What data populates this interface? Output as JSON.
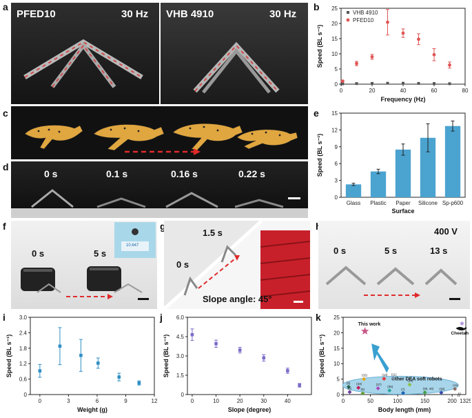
{
  "panels": {
    "a": "a",
    "b": "b",
    "c": "c",
    "d": "d",
    "e": "e",
    "f": "f",
    "g": "g",
    "h": "h",
    "i": "i",
    "j": "j",
    "k": "k"
  },
  "photo_a": {
    "left_label": "PFED10",
    "left_freq": "30 Hz",
    "right_label": "VHB 4910",
    "right_freq": "30 Hz"
  },
  "photo_d": {
    "times": [
      "0 s",
      "0.1 s",
      "0.16 s",
      "0.22 s"
    ]
  },
  "photo_f": {
    "t0": "0 s",
    "t1": "5 s",
    "scale_reading": "10.647"
  },
  "photo_g": {
    "t0": "0 s",
    "t1": "1.5 s",
    "slope": "Slope angle: 45°"
  },
  "photo_h": {
    "voltage": "400 V",
    "t0": "0 s",
    "t1": "5 s",
    "t2": "13 s"
  },
  "chart_data": [
    {
      "id": "b",
      "type": "scatter",
      "xlabel": "Frequency (Hz)",
      "ylabel": "Speed (BL s⁻¹)",
      "xlim": [
        0,
        80
      ],
      "ylim": [
        0,
        25
      ],
      "xticks": [
        0,
        20,
        40,
        60,
        80
      ],
      "yticks": [
        0,
        5,
        10,
        15,
        20,
        25
      ],
      "legend": "top-left",
      "series": [
        {
          "name": "VHB 4910",
          "color": "#555555",
          "marker": "square",
          "x": [
            1,
            10,
            20,
            30,
            40,
            50,
            60,
            70
          ],
          "y": [
            0.1,
            0.2,
            0.25,
            0.3,
            0.3,
            0.25,
            0.2,
            0.15
          ],
          "err": [
            0,
            0,
            0,
            0,
            0,
            0,
            0,
            0
          ]
        },
        {
          "name": "PFED10",
          "color": "#e05555",
          "marker": "circle",
          "x": [
            1,
            10,
            20,
            30,
            40,
            50,
            60,
            70
          ],
          "y": [
            1.0,
            6.8,
            9.0,
            20.4,
            16.8,
            14.8,
            9.7,
            6.3
          ],
          "err": [
            0.3,
            0.7,
            0.8,
            4.2,
            1.4,
            1.8,
            2.0,
            1.0
          ]
        }
      ]
    },
    {
      "id": "e",
      "type": "bar",
      "xlabel": "Surface",
      "ylabel": "Speed (BL s⁻¹)",
      "categories": [
        "Glass",
        "Plastic",
        "Paper",
        "Silicone",
        "Sp-p600"
      ],
      "values": [
        2.3,
        4.6,
        8.5,
        10.6,
        12.7
      ],
      "err": [
        0.2,
        0.4,
        1.0,
        2.5,
        0.9
      ],
      "ylim": [
        0,
        15
      ],
      "yticks": [
        0,
        3,
        6,
        9,
        12,
        15
      ],
      "color": "#4ba3d0"
    },
    {
      "id": "i",
      "type": "scatter",
      "xlabel": "Weight (g)",
      "ylabel": "Speed (BL s⁻¹)",
      "xlim": [
        -1,
        12
      ],
      "ylim": [
        0,
        3
      ],
      "xticks": [
        0,
        3,
        6,
        9,
        12
      ],
      "yticks": [
        0,
        0.6,
        1.2,
        1.8,
        2.4,
        3.0
      ],
      "ytick_labels": [
        "0",
        "0.6",
        "1.2",
        "1.8",
        "2.4",
        "3.0"
      ],
      "color": "#2f8fc5",
      "x": [
        0,
        2.1,
        4.3,
        6.1,
        8.3,
        10.4
      ],
      "y": [
        0.92,
        1.88,
        1.52,
        1.22,
        0.68,
        0.45
      ],
      "err": [
        0.25,
        0.72,
        0.62,
        0.2,
        0.15,
        0.08
      ]
    },
    {
      "id": "j",
      "type": "scatter",
      "xlabel": "Slope (degree)",
      "ylabel": "Speed (BL s⁻¹)",
      "xlim": [
        -2,
        50
      ],
      "ylim": [
        0,
        6
      ],
      "xticks": [
        0,
        10,
        20,
        30,
        40
      ],
      "yticks": [
        0,
        1.5,
        3.0,
        4.5,
        6.0
      ],
      "ytick_labels": [
        "0",
        "1.5",
        "3.0",
        "4.5",
        "6.0"
      ],
      "color": "#7b6cc9",
      "x": [
        0,
        10,
        20,
        30,
        40,
        45
      ],
      "y": [
        4.65,
        3.95,
        3.45,
        2.85,
        1.85,
        0.72
      ],
      "err": [
        0.45,
        0.28,
        0.22,
        0.25,
        0.2,
        0.14
      ]
    },
    {
      "id": "k",
      "type": "scatter",
      "xlabel": "Body length (mm)",
      "ylabel": "Speed (BL s⁻¹)",
      "xlim": [
        0,
        225
      ],
      "ylim": [
        0,
        25
      ],
      "xticks": [
        0,
        50,
        100,
        150,
        200
      ],
      "yticks": [
        0,
        5,
        10,
        15,
        20,
        25
      ],
      "break_label": "1325",
      "this_work": {
        "label": "This work",
        "x": 40,
        "y": 20.5,
        "color": "#c85a8a"
      },
      "cheetah": {
        "label": "Cheetah",
        "x": 218,
        "y": 23
      },
      "ellipse_label": "Other DEA soft robots",
      "others": [
        {
          "ref": "(6)",
          "x": 10,
          "y": 2.5,
          "color": "#2d6a4f"
        },
        {
          "ref": "(8)",
          "x": 12,
          "y": 0.8,
          "color": "#6a3d9a"
        },
        {
          "ref": "(32)",
          "x": 38,
          "y": 5.0,
          "color": "#e6a817"
        },
        {
          "ref": "(33)",
          "x": 28,
          "y": 2.2,
          "color": "#c2185b"
        },
        {
          "ref": "(9)",
          "x": 36,
          "y": 0.4,
          "color": "#689f38"
        },
        {
          "ref": "(13)",
          "x": 75,
          "y": 5.1,
          "color": "#e53935"
        },
        {
          "ref": "(11)",
          "x": 92,
          "y": 5.2,
          "color": "#7a8fa6"
        },
        {
          "ref": "(37)",
          "x": 64,
          "y": 2.0,
          "color": "#ab47bc"
        },
        {
          "ref": "(36)",
          "x": 85,
          "y": 1.3,
          "color": "#26a69a"
        },
        {
          "ref": "(34)",
          "x": 122,
          "y": 3.2,
          "color": "#8bc34a"
        },
        {
          "ref": "(7)",
          "x": 110,
          "y": 0.5,
          "color": "#1e63b5"
        },
        {
          "ref": "(35, 40)",
          "x": 150,
          "y": 0.7,
          "color": "#43a047"
        },
        {
          "ref": "(38)",
          "x": 180,
          "y": 0.6,
          "color": "#3949ab"
        },
        {
          "ref": "(41)",
          "x": 205,
          "y": 1.8,
          "color": "#8d6e63"
        }
      ]
    }
  ]
}
